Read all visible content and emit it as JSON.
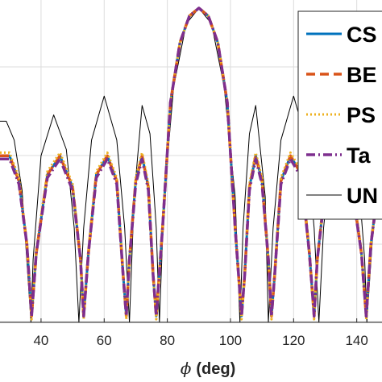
{
  "chart_data": {
    "type": "line",
    "xlabel_symbol": "ϕ",
    "xlabel_unit": "(deg)",
    "xlim": [
      27,
      148
    ],
    "x_ticks": [
      40,
      60,
      80,
      100,
      120,
      140
    ],
    "x_tick_labels": [
      "40",
      "60",
      "80",
      "100",
      "120",
      "140"
    ],
    "y_range_normalized": [
      0,
      1
    ],
    "grid": true,
    "legend_position": "top-right",
    "series": [
      {
        "name": "CS",
        "color": "#0072BD",
        "style": "solid",
        "points": [
          [
            27,
            0.53
          ],
          [
            30,
            0.53
          ],
          [
            33,
            0.45
          ],
          [
            35.5,
            0.25
          ],
          [
            37,
            0.02
          ],
          [
            38.5,
            0.22
          ],
          [
            42,
            0.47
          ],
          [
            46,
            0.53
          ],
          [
            50,
            0.43
          ],
          [
            52.5,
            0.2
          ],
          [
            53.5,
            0.02
          ],
          [
            55,
            0.22
          ],
          [
            57.5,
            0.47
          ],
          [
            61,
            0.53
          ],
          [
            64,
            0.45
          ],
          [
            66,
            0.15
          ],
          [
            67,
            0.02
          ],
          [
            68,
            0.2
          ],
          [
            70,
            0.45
          ],
          [
            72,
            0.53
          ],
          [
            74,
            0.43
          ],
          [
            75.5,
            0.15
          ],
          [
            76.5,
            0.02
          ],
          [
            78.5,
            0.3
          ],
          [
            81,
            0.7
          ],
          [
            84,
            0.89
          ],
          [
            87,
            0.975
          ],
          [
            90,
            1.0
          ],
          [
            93,
            0.975
          ],
          [
            96,
            0.89
          ],
          [
            99,
            0.7
          ],
          [
            101.5,
            0.3
          ],
          [
            103.5,
            0.02
          ],
          [
            104.5,
            0.15
          ],
          [
            106,
            0.43
          ],
          [
            108,
            0.53
          ],
          [
            110,
            0.45
          ],
          [
            112,
            0.2
          ],
          [
            113,
            0.02
          ],
          [
            114,
            0.15
          ],
          [
            116,
            0.45
          ],
          [
            119,
            0.53
          ],
          [
            122.5,
            0.47
          ],
          [
            125,
            0.22
          ],
          [
            126.5,
            0.02
          ],
          [
            127.5,
            0.2
          ],
          [
            130,
            0.43
          ],
          [
            134,
            0.53
          ],
          [
            138,
            0.47
          ],
          [
            141.5,
            0.22
          ],
          [
            143,
            0.02
          ],
          [
            144.5,
            0.25
          ],
          [
            147,
            0.45
          ],
          [
            148,
            0.5
          ]
        ]
      },
      {
        "name": "BE",
        "color": "#D95319",
        "style": "dashed",
        "points": [
          [
            27,
            0.53
          ],
          [
            30,
            0.53
          ],
          [
            33,
            0.45
          ],
          [
            35.5,
            0.25
          ],
          [
            37,
            0.02
          ],
          [
            38.5,
            0.22
          ],
          [
            42,
            0.47
          ],
          [
            46,
            0.53
          ],
          [
            50,
            0.43
          ],
          [
            52.5,
            0.2
          ],
          [
            53.5,
            0.02
          ],
          [
            55,
            0.22
          ],
          [
            57.5,
            0.47
          ],
          [
            61,
            0.53
          ],
          [
            64,
            0.45
          ],
          [
            66,
            0.15
          ],
          [
            67,
            0.02
          ],
          [
            68,
            0.2
          ],
          [
            70,
            0.45
          ],
          [
            72,
            0.53
          ],
          [
            74,
            0.43
          ],
          [
            75.5,
            0.15
          ],
          [
            76.5,
            0.02
          ],
          [
            78.5,
            0.3
          ],
          [
            81,
            0.7
          ],
          [
            84,
            0.89
          ],
          [
            87,
            0.975
          ],
          [
            90,
            1.0
          ],
          [
            93,
            0.975
          ],
          [
            96,
            0.89
          ],
          [
            99,
            0.7
          ],
          [
            101.5,
            0.3
          ],
          [
            103.5,
            0.02
          ],
          [
            104.5,
            0.15
          ],
          [
            106,
            0.43
          ],
          [
            108,
            0.53
          ],
          [
            110,
            0.45
          ],
          [
            112,
            0.2
          ],
          [
            113,
            0.02
          ],
          [
            114,
            0.15
          ],
          [
            116,
            0.45
          ],
          [
            119,
            0.53
          ],
          [
            122.5,
            0.47
          ],
          [
            125,
            0.22
          ],
          [
            126.5,
            0.02
          ],
          [
            127.5,
            0.2
          ],
          [
            130,
            0.43
          ],
          [
            134,
            0.53
          ],
          [
            138,
            0.47
          ],
          [
            141.5,
            0.22
          ],
          [
            143,
            0.02
          ],
          [
            144.5,
            0.25
          ],
          [
            147,
            0.45
          ],
          [
            148,
            0.5
          ]
        ]
      },
      {
        "name": "PS",
        "color": "#EDB120",
        "style": "dotted",
        "points": [
          [
            27,
            0.54
          ],
          [
            30,
            0.54
          ],
          [
            33,
            0.46
          ],
          [
            35.5,
            0.25
          ],
          [
            37,
            0.01
          ],
          [
            38.5,
            0.23
          ],
          [
            42,
            0.48
          ],
          [
            46,
            0.54
          ],
          [
            50,
            0.44
          ],
          [
            52.5,
            0.2
          ],
          [
            53.5,
            0.01
          ],
          [
            55,
            0.23
          ],
          [
            57.5,
            0.48
          ],
          [
            61,
            0.54
          ],
          [
            64,
            0.46
          ],
          [
            66,
            0.15
          ],
          [
            67,
            0.01
          ],
          [
            68,
            0.2
          ],
          [
            70,
            0.46
          ],
          [
            72,
            0.54
          ],
          [
            74,
            0.44
          ],
          [
            75.5,
            0.15
          ],
          [
            76.5,
            0.01
          ],
          [
            78.5,
            0.3
          ],
          [
            81,
            0.7
          ],
          [
            84,
            0.89
          ],
          [
            87,
            0.975
          ],
          [
            90,
            1.0
          ],
          [
            93,
            0.975
          ],
          [
            96,
            0.89
          ],
          [
            99,
            0.7
          ],
          [
            101.5,
            0.3
          ],
          [
            103.5,
            0.01
          ],
          [
            104.5,
            0.15
          ],
          [
            106,
            0.44
          ],
          [
            108,
            0.54
          ],
          [
            110,
            0.46
          ],
          [
            112,
            0.2
          ],
          [
            113,
            0.01
          ],
          [
            114,
            0.15
          ],
          [
            116,
            0.46
          ],
          [
            119,
            0.54
          ],
          [
            122.5,
            0.48
          ],
          [
            125,
            0.23
          ],
          [
            126.5,
            0.01
          ],
          [
            127.5,
            0.2
          ],
          [
            130,
            0.44
          ],
          [
            134,
            0.54
          ],
          [
            138,
            0.48
          ],
          [
            141.5,
            0.23
          ],
          [
            143,
            0.01
          ],
          [
            144.5,
            0.25
          ],
          [
            147,
            0.46
          ],
          [
            148,
            0.5
          ]
        ]
      },
      {
        "name": "Ta",
        "color": "#7E2F8E",
        "style": "dashdot",
        "points": [
          [
            27,
            0.52
          ],
          [
            30,
            0.52
          ],
          [
            33,
            0.44
          ],
          [
            35.5,
            0.25
          ],
          [
            37,
            0.02
          ],
          [
            38.5,
            0.22
          ],
          [
            42,
            0.46
          ],
          [
            46,
            0.52
          ],
          [
            50,
            0.42
          ],
          [
            52.5,
            0.2
          ],
          [
            53.5,
            0.02
          ],
          [
            55,
            0.22
          ],
          [
            57.5,
            0.46
          ],
          [
            61,
            0.52
          ],
          [
            64,
            0.44
          ],
          [
            66,
            0.15
          ],
          [
            67,
            0.02
          ],
          [
            68,
            0.2
          ],
          [
            70,
            0.44
          ],
          [
            72,
            0.52
          ],
          [
            74,
            0.42
          ],
          [
            75.5,
            0.15
          ],
          [
            76.5,
            0.02
          ],
          [
            78.5,
            0.3
          ],
          [
            81,
            0.7
          ],
          [
            84,
            0.89
          ],
          [
            87,
            0.975
          ],
          [
            90,
            1.0
          ],
          [
            93,
            0.975
          ],
          [
            96,
            0.89
          ],
          [
            99,
            0.7
          ],
          [
            101.5,
            0.3
          ],
          [
            103.5,
            0.02
          ],
          [
            104.5,
            0.15
          ],
          [
            106,
            0.42
          ],
          [
            108,
            0.52
          ],
          [
            110,
            0.44
          ],
          [
            112,
            0.2
          ],
          [
            113,
            0.02
          ],
          [
            114,
            0.15
          ],
          [
            116,
            0.44
          ],
          [
            119,
            0.52
          ],
          [
            122.5,
            0.46
          ],
          [
            125,
            0.22
          ],
          [
            126.5,
            0.02
          ],
          [
            127.5,
            0.2
          ],
          [
            130,
            0.42
          ],
          [
            134,
            0.52
          ],
          [
            138,
            0.46
          ],
          [
            141.5,
            0.22
          ],
          [
            143,
            0.02
          ],
          [
            144.5,
            0.25
          ],
          [
            147,
            0.44
          ],
          [
            148,
            0.5
          ]
        ]
      },
      {
        "name": "UN",
        "color": "#000000",
        "style": "thin",
        "points": [
          [
            27,
            0.64
          ],
          [
            29,
            0.64
          ],
          [
            31.5,
            0.58
          ],
          [
            34,
            0.42
          ],
          [
            36,
            0.12
          ],
          [
            36.8,
            0.0
          ],
          [
            37.5,
            0.2
          ],
          [
            40,
            0.53
          ],
          [
            44,
            0.66
          ],
          [
            48,
            0.55
          ],
          [
            50.5,
            0.3
          ],
          [
            52,
            0.0
          ],
          [
            53.5,
            0.3
          ],
          [
            56,
            0.58
          ],
          [
            60,
            0.72
          ],
          [
            64,
            0.58
          ],
          [
            66.5,
            0.3
          ],
          [
            68,
            0.0
          ],
          [
            69.5,
            0.4
          ],
          [
            72,
            0.69
          ],
          [
            74.5,
            0.6
          ],
          [
            76.5,
            0.3
          ],
          [
            77.5,
            0.0
          ],
          [
            79,
            0.4
          ],
          [
            82,
            0.75
          ],
          [
            86,
            0.95
          ],
          [
            90,
            1.0
          ],
          [
            94,
            0.95
          ],
          [
            98,
            0.75
          ],
          [
            101.5,
            0.4
          ],
          [
            103,
            0.0
          ],
          [
            104,
            0.3
          ],
          [
            106,
            0.6
          ],
          [
            108,
            0.69
          ],
          [
            111,
            0.4
          ],
          [
            112,
            0.0
          ],
          [
            113.5,
            0.3
          ],
          [
            116,
            0.58
          ],
          [
            120,
            0.72
          ],
          [
            124,
            0.58
          ],
          [
            126.5,
            0.3
          ],
          [
            128,
            0.0
          ],
          [
            129.5,
            0.3
          ],
          [
            132,
            0.55
          ],
          [
            136,
            0.66
          ],
          [
            140,
            0.53
          ],
          [
            142.5,
            0.2
          ],
          [
            143.2,
            0.0
          ],
          [
            144,
            0.12
          ],
          [
            146,
            0.42
          ],
          [
            148,
            0.58
          ]
        ]
      }
    ]
  }
}
